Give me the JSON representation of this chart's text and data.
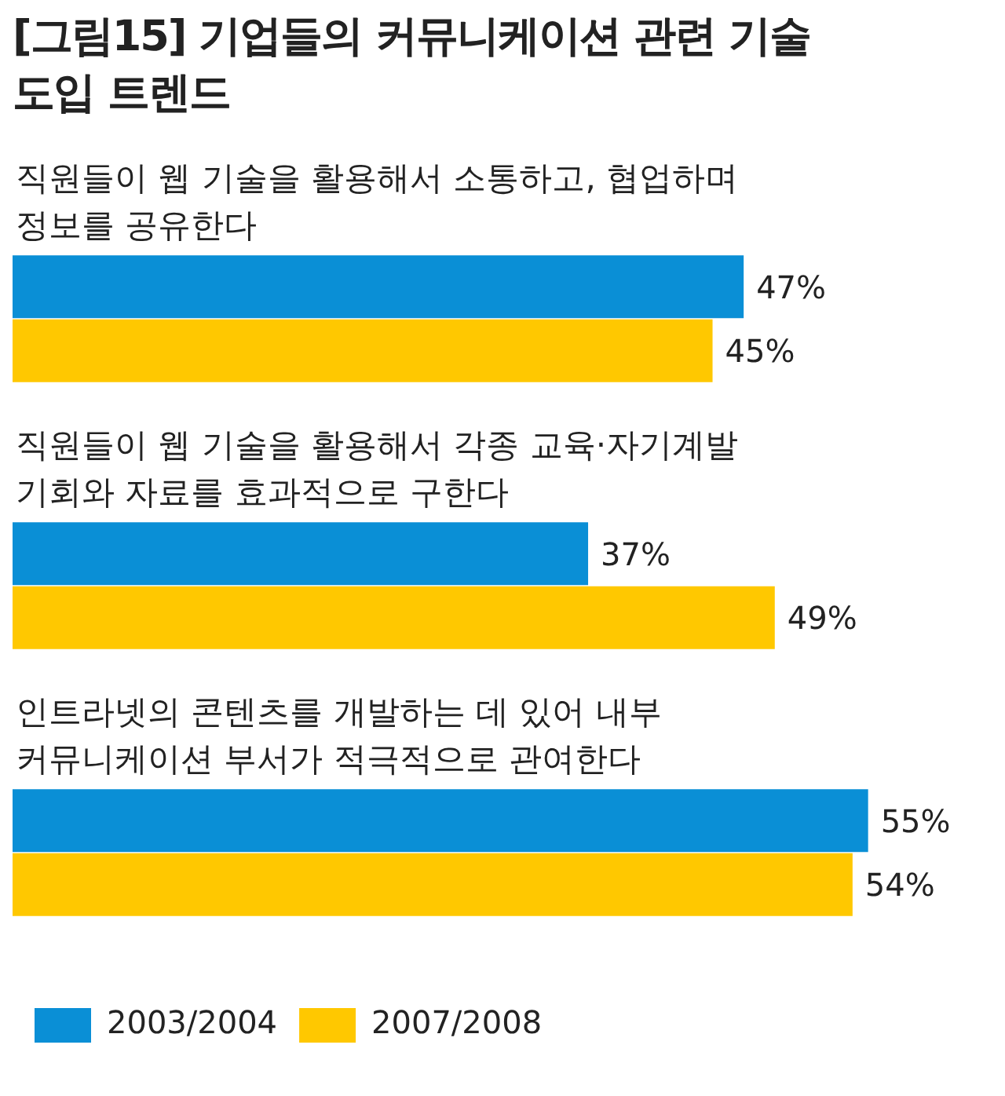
{
  "chart_data": {
    "type": "bar",
    "orientation": "horizontal",
    "title": "[그림15] 기업들의 커뮤니케이션 관련 기술 도입 트렌드",
    "categories": [
      "직원들이 웹 기술을 활용해서 소통하고, 협업하며 정보를 공유한다",
      "직원들이 웹 기술을 활용해서 각종 교육·자기계발 기회와 자료를 효과적으로 구한다",
      "인트라넷의 콘텐츠를 개발하는 데 있어 내부 커뮤니케이션 부서가 적극적으로 관여한다"
    ],
    "series": [
      {
        "name": "2003/2004",
        "color": "#0a8fd6",
        "values": [
          47,
          37,
          55
        ],
        "value_labels": [
          "47%",
          "37%",
          "55%"
        ]
      },
      {
        "name": "2007/2008",
        "color": "#ffc800",
        "values": [
          45,
          49,
          54
        ],
        "value_labels": [
          "45%",
          "49%",
          "54%"
        ]
      }
    ],
    "legend": "bottom left"
  }
}
